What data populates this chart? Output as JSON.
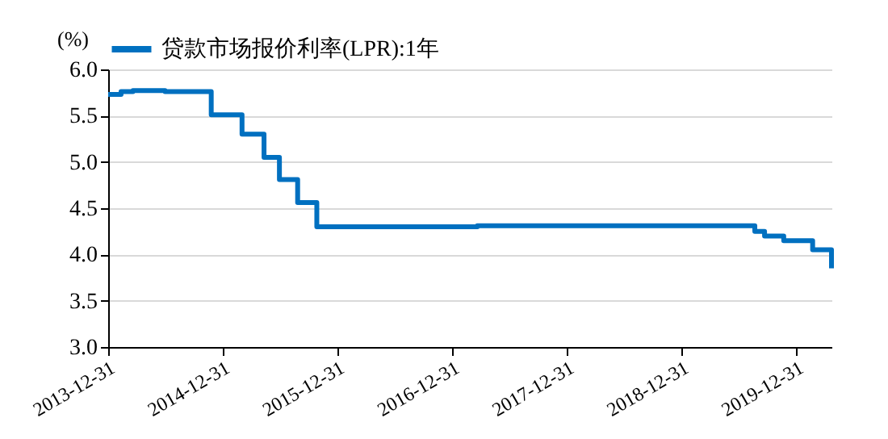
{
  "chart_data": {
    "type": "step",
    "ylabel": "(%)",
    "legend": "top",
    "grid": "y",
    "x": [
      "2013-12-31",
      "2014-02-10",
      "2014-03-20",
      "2014-06-30",
      "2014-11-24",
      "2015-03-02",
      "2015-05-11",
      "2015-06-29",
      "2015-08-26",
      "2015-10-26",
      "2017-03-20",
      "2019-08-20",
      "2019-09-20",
      "2019-11-20",
      "2020-02-20",
      "2020-03-20",
      "2020-04-20"
    ],
    "series": [
      {
        "name": "贷款市场报价利率(LPR):1年",
        "color": "#0070c0",
        "values": [
          5.73,
          5.76,
          5.77,
          5.76,
          5.51,
          5.3,
          5.05,
          4.81,
          4.56,
          4.3,
          4.31,
          4.25,
          4.2,
          4.15,
          4.05,
          4.05,
          3.85
        ]
      }
    ],
    "xlim": [
      "2013-12-31",
      "2020-04-20"
    ],
    "xticks": [
      "2013-12-31",
      "2014-12-31",
      "2015-12-31",
      "2016-12-31",
      "2017-12-31",
      "2018-12-31",
      "2019-12-31"
    ],
    "ylim": [
      3.0,
      6.0
    ],
    "yticks": [
      {
        "value": 3.0,
        "label": "3.0"
      },
      {
        "value": 3.5,
        "label": "3.5"
      },
      {
        "value": 4.0,
        "label": "4.0"
      },
      {
        "value": 4.5,
        "label": "4.5"
      },
      {
        "value": 5.0,
        "label": "5.0"
      },
      {
        "value": 5.5,
        "label": "5.5"
      },
      {
        "value": 6.0,
        "label": "6.0"
      }
    ]
  }
}
